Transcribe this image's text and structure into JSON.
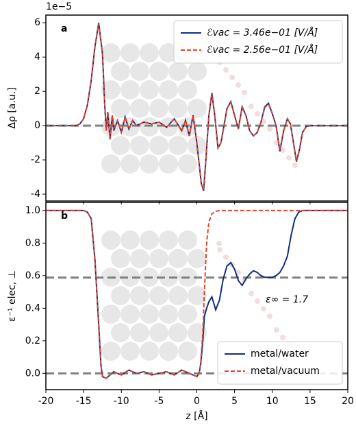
{
  "charts": [
    {
      "type": "line",
      "panel_label": "a",
      "offset_text": "1e−5",
      "ylabel": "Δρ [a.u.]",
      "x": [
        -20,
        -16,
        -15.5,
        -15,
        -14.5,
        -14,
        -13.5,
        -13,
        -12.5,
        -12.2,
        -12,
        -11.8,
        -11.5,
        -11.2,
        -11,
        -10.5,
        -10,
        -9.5,
        -9,
        -8.5,
        -8,
        -7,
        -6,
        -5,
        -4,
        -3,
        -2,
        -1.5,
        -1,
        -0.5,
        0,
        0.3,
        0.6,
        0.9,
        1.2,
        1.6,
        2,
        2.4,
        2.8,
        3.2,
        3.6,
        4,
        4.5,
        5,
        5.5,
        6,
        6.5,
        7,
        7.5,
        8,
        8.5,
        9,
        9.5,
        10,
        10.5,
        11,
        11.5,
        12,
        12.4,
        12.8,
        13.2,
        13.6,
        14,
        14.5,
        15,
        20
      ],
      "series": [
        {
          "name": "ℰvac = 3.46e−01 [V/Å]",
          "color": "#0d2f7e",
          "dash": false,
          "values": [
            0,
            0,
            0.1,
            0.4,
            1.2,
            2.6,
            4.6,
            6.0,
            4.2,
            1.2,
            -0.3,
            0.8,
            -0.8,
            0.6,
            -0.3,
            0.3,
            -0.4,
            0.5,
            -0.2,
            0.3,
            0,
            0.2,
            0.1,
            0.2,
            -0.1,
            0.4,
            -0.3,
            0.3,
            -0.6,
            0.6,
            -1.0,
            -2.2,
            -3.4,
            -3.8,
            -2.0,
            0.6,
            1.9,
            0.5,
            -1.3,
            -1.0,
            0.0,
            1.0,
            1.4,
            0.6,
            -0.2,
            1.1,
            0.6,
            -0.3,
            -0.6,
            -0.4,
            0.2,
            1.1,
            1.3,
            0.7,
            0.0,
            -1.5,
            -0.3,
            0.4,
            0.1,
            -1.0,
            -2.1,
            -1.4,
            -0.4,
            -0.05,
            0,
            0
          ]
        },
        {
          "name": "ℰvac = 2.56e−01 [V/Å]",
          "color": "#e0452c",
          "dash": true,
          "values": [
            0,
            0,
            0.1,
            0.4,
            1.2,
            2.6,
            4.6,
            5.95,
            4.2,
            1.2,
            -0.3,
            0.8,
            -0.8,
            0.6,
            -0.3,
            0.3,
            -0.4,
            0.5,
            -0.2,
            0.3,
            0,
            0.2,
            0.1,
            0.2,
            -0.1,
            0.4,
            -0.3,
            0.3,
            -0.6,
            0.6,
            -1.0,
            -2.2,
            -3.4,
            -3.75,
            -2.0,
            0.6,
            1.85,
            0.5,
            -1.3,
            -1.0,
            0.0,
            1.0,
            1.35,
            0.6,
            -0.2,
            1.05,
            0.6,
            -0.3,
            -0.6,
            -0.4,
            0.2,
            1.05,
            1.25,
            0.7,
            0.0,
            -1.45,
            -0.3,
            0.4,
            0.1,
            -1.0,
            -2.05,
            -1.4,
            -0.4,
            -0.05,
            0,
            0
          ]
        }
      ],
      "hlines": [
        0
      ],
      "xlim": [
        -20,
        20
      ],
      "xticks": [
        -20,
        -15,
        -10,
        -5,
        0,
        5,
        10,
        15,
        20
      ],
      "show_xtick_labels": false,
      "ylim": [
        -4.4,
        6.45
      ],
      "yticks": [
        -4,
        -2,
        0,
        2,
        4,
        6
      ],
      "legend": "upper right"
    },
    {
      "type": "line",
      "panel_label": "b",
      "ylabel": "ε⁻¹ elec, ⊥",
      "xlabel": "z [Å]",
      "annotation": "ε∞ = 1.7",
      "x": [
        -20,
        -15,
        -14.5,
        -14,
        -13.5,
        -13,
        -12.7,
        -12.5,
        -12,
        -11,
        -10,
        -9,
        -8,
        -7,
        -6,
        -5,
        -4,
        -3,
        -2,
        -1,
        0,
        0.3,
        0.5,
        0.8,
        1,
        1.3,
        1.6,
        2,
        2.5,
        3,
        3.5,
        4,
        4.5,
        5,
        5.5,
        6,
        6.5,
        7,
        7.5,
        8,
        8.5,
        9,
        9.5,
        10,
        10.5,
        11,
        11.5,
        12,
        12.5,
        13,
        13.5,
        14,
        15,
        20
      ],
      "series": [
        {
          "name": "metal/water",
          "color": "#0d2f7e",
          "dash": false,
          "values": [
            1,
            1,
            0.99,
            0.95,
            0.7,
            0.3,
            0.05,
            -0.02,
            -0.03,
            0.01,
            -0.01,
            0.02,
            0,
            0.01,
            -0.01,
            0,
            0.01,
            -0.01,
            0.02,
            0,
            -0.02,
            0,
            0.05,
            0.2,
            0.35,
            0.4,
            0.44,
            0.47,
            0.39,
            0.45,
            0.58,
            0.66,
            0.68,
            0.64,
            0.57,
            0.54,
            0.58,
            0.61,
            0.63,
            0.62,
            0.6,
            0.59,
            0.59,
            0.59,
            0.6,
            0.62,
            0.66,
            0.72,
            0.85,
            0.95,
            0.99,
            1,
            1,
            1
          ]
        },
        {
          "name": "metal/vacuum",
          "color": "#e0452c",
          "dash": true,
          "values": [
            1,
            1,
            0.99,
            0.95,
            0.7,
            0.3,
            0.05,
            -0.02,
            -0.03,
            0.01,
            -0.01,
            0.02,
            0,
            0.01,
            -0.01,
            0,
            0.01,
            -0.01,
            0.02,
            0,
            -0.02,
            0,
            0.06,
            0.25,
            0.5,
            0.8,
            0.93,
            0.98,
            0.995,
            1,
            1,
            1,
            1,
            1,
            1,
            1,
            1,
            1,
            1,
            1,
            1,
            1,
            1,
            1,
            1,
            1,
            1,
            1,
            1,
            1,
            1,
            1,
            1,
            1
          ]
        }
      ],
      "hlines": [
        0.588,
        0
      ],
      "xlim": [
        -20,
        20
      ],
      "xticks": [
        -20,
        -15,
        -10,
        -5,
        0,
        5,
        10,
        15,
        20
      ],
      "show_xtick_labels": true,
      "ylim": [
        -0.1,
        1.05
      ],
      "yticks": [
        {
          "value": 0,
          "label": "0.0"
        },
        0.2,
        0.4,
        0.6,
        0.8,
        {
          "value": 1,
          "label": "1.0"
        }
      ],
      "legend": "lower right"
    }
  ]
}
